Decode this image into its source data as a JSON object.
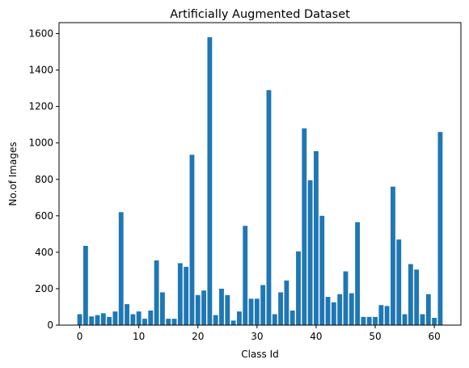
{
  "chart_data": {
    "type": "bar",
    "title": "Artificially Augmented Dataset",
    "xlabel": "Class Id",
    "ylabel": "No.of Images",
    "xlim": [
      -3.5,
      64.5
    ],
    "ylim": [
      0,
      1660
    ],
    "xticks": [
      0,
      10,
      20,
      30,
      40,
      50,
      60
    ],
    "yticks": [
      0,
      200,
      400,
      600,
      800,
      1000,
      1200,
      1400,
      1600
    ],
    "grid": false,
    "legend": "none",
    "bar_color": "#1f77b4",
    "x": [
      0,
      1,
      2,
      3,
      4,
      5,
      6,
      7,
      8,
      9,
      10,
      11,
      12,
      13,
      14,
      15,
      16,
      17,
      18,
      19,
      20,
      21,
      22,
      23,
      24,
      25,
      26,
      27,
      28,
      29,
      30,
      31,
      32,
      33,
      34,
      35,
      36,
      37,
      38,
      39,
      40,
      41,
      42,
      43,
      44,
      45,
      46,
      47,
      48,
      49,
      50,
      51,
      52,
      53,
      54,
      55,
      56,
      57,
      58,
      59,
      60,
      61
    ],
    "values": [
      60,
      435,
      48,
      55,
      65,
      45,
      75,
      620,
      115,
      60,
      75,
      35,
      80,
      355,
      180,
      35,
      35,
      340,
      320,
      935,
      165,
      190,
      1580,
      55,
      200,
      165,
      25,
      75,
      545,
      145,
      145,
      220,
      1290,
      60,
      180,
      245,
      80,
      405,
      1080,
      795,
      955,
      600,
      155,
      125,
      170,
      295,
      175,
      565,
      45,
      45,
      45,
      110,
      105,
      760,
      470,
      60,
      335,
      305,
      60,
      170,
      40,
      1060
    ]
  }
}
